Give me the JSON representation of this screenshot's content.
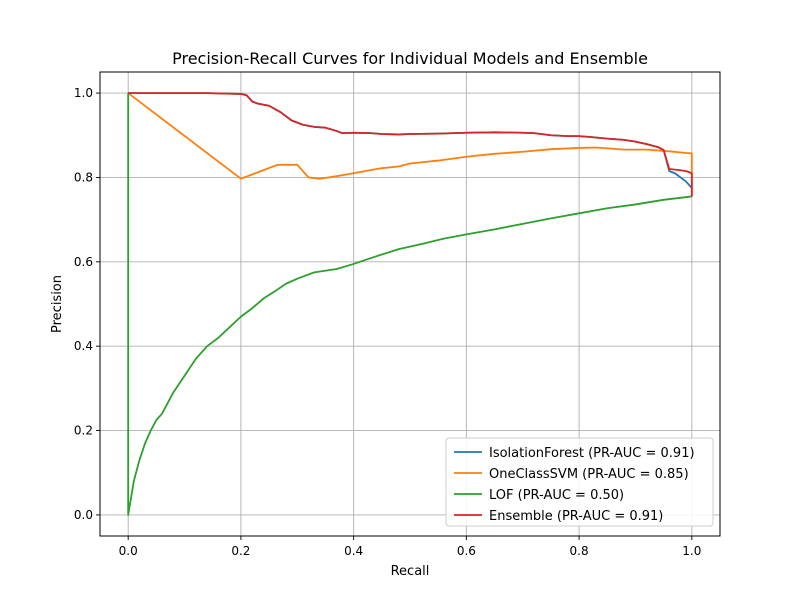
{
  "chart_data": {
    "type": "line",
    "title": "Precision-Recall Curves for Individual Models and Ensemble",
    "xlabel": "Recall",
    "ylabel": "Precision",
    "xlim": [
      -0.05,
      1.05
    ],
    "ylim": [
      -0.05,
      1.05
    ],
    "xticks": [
      0.0,
      0.2,
      0.4,
      0.6,
      0.8,
      1.0
    ],
    "xtick_labels": [
      "0.0",
      "0.2",
      "0.4",
      "0.6",
      "0.8",
      "1.0"
    ],
    "yticks": [
      0.0,
      0.2,
      0.4,
      0.6,
      0.8,
      1.0
    ],
    "ytick_labels": [
      "0.0",
      "0.2",
      "0.4",
      "0.6",
      "0.8",
      "1.0"
    ],
    "grid": true,
    "legend_position": "lower-right",
    "series": [
      {
        "name": "IsolationForest (PR-AUC = 0.91)",
        "color": "#1f77b4",
        "points": [
          [
            0,
            1.0
          ],
          [
            0.14,
            1.0
          ],
          [
            0.2,
            0.998
          ],
          [
            0.21,
            0.995
          ],
          [
            0.22,
            0.98
          ],
          [
            0.23,
            0.975
          ],
          [
            0.25,
            0.97
          ],
          [
            0.27,
            0.955
          ],
          [
            0.29,
            0.935
          ],
          [
            0.31,
            0.925
          ],
          [
            0.33,
            0.92
          ],
          [
            0.35,
            0.918
          ],
          [
            0.37,
            0.91
          ],
          [
            0.38,
            0.905
          ],
          [
            0.4,
            0.906
          ],
          [
            0.43,
            0.905
          ],
          [
            0.45,
            0.903
          ],
          [
            0.48,
            0.902
          ],
          [
            0.5,
            0.903
          ],
          [
            0.55,
            0.904
          ],
          [
            0.6,
            0.906
          ],
          [
            0.65,
            0.907
          ],
          [
            0.7,
            0.906
          ],
          [
            0.72,
            0.905
          ],
          [
            0.75,
            0.9
          ],
          [
            0.78,
            0.898
          ],
          [
            0.8,
            0.898
          ],
          [
            0.82,
            0.896
          ],
          [
            0.85,
            0.892
          ],
          [
            0.88,
            0.889
          ],
          [
            0.9,
            0.885
          ],
          [
            0.92,
            0.879
          ],
          [
            0.94,
            0.872
          ],
          [
            0.95,
            0.865
          ],
          [
            0.96,
            0.815
          ],
          [
            0.97,
            0.81
          ],
          [
            0.98,
            0.8
          ],
          [
            0.99,
            0.79
          ],
          [
            1.0,
            0.775
          ]
        ]
      },
      {
        "name": "OneClassSVM (PR-AUC = 0.85)",
        "color": "#ff7f0e",
        "points": [
          [
            0,
            1.0
          ],
          [
            0.2,
            0.797
          ],
          [
            0.265,
            0.83
          ],
          [
            0.3,
            0.83
          ],
          [
            0.32,
            0.8
          ],
          [
            0.34,
            0.797
          ],
          [
            0.37,
            0.803
          ],
          [
            0.4,
            0.81
          ],
          [
            0.42,
            0.815
          ],
          [
            0.45,
            0.822
          ],
          [
            0.48,
            0.826
          ],
          [
            0.5,
            0.833
          ],
          [
            0.55,
            0.84
          ],
          [
            0.6,
            0.849
          ],
          [
            0.65,
            0.856
          ],
          [
            0.7,
            0.861
          ],
          [
            0.75,
            0.867
          ],
          [
            0.8,
            0.87
          ],
          [
            0.83,
            0.871
          ],
          [
            0.86,
            0.868
          ],
          [
            0.88,
            0.866
          ],
          [
            0.92,
            0.866
          ],
          [
            0.96,
            0.862
          ],
          [
            0.99,
            0.858
          ],
          [
            1.0,
            0.857
          ],
          [
            1.0,
            0.755
          ]
        ]
      },
      {
        "name": "LOF (PR-AUC = 0.50)",
        "color": "#2ca02c",
        "points": [
          [
            0,
            1.0
          ],
          [
            0,
            0.0
          ],
          [
            0.005,
            0.04
          ],
          [
            0.01,
            0.08
          ],
          [
            0.02,
            0.13
          ],
          [
            0.03,
            0.17
          ],
          [
            0.04,
            0.2
          ],
          [
            0.05,
            0.225
          ],
          [
            0.06,
            0.24
          ],
          [
            0.08,
            0.29
          ],
          [
            0.1,
            0.33
          ],
          [
            0.12,
            0.37
          ],
          [
            0.14,
            0.4
          ],
          [
            0.16,
            0.42
          ],
          [
            0.18,
            0.445
          ],
          [
            0.2,
            0.47
          ],
          [
            0.22,
            0.49
          ],
          [
            0.24,
            0.513
          ],
          [
            0.26,
            0.53
          ],
          [
            0.28,
            0.548
          ],
          [
            0.3,
            0.56
          ],
          [
            0.33,
            0.575
          ],
          [
            0.37,
            0.583
          ],
          [
            0.4,
            0.595
          ],
          [
            0.44,
            0.613
          ],
          [
            0.48,
            0.63
          ],
          [
            0.52,
            0.642
          ],
          [
            0.56,
            0.655
          ],
          [
            0.6,
            0.665
          ],
          [
            0.65,
            0.677
          ],
          [
            0.7,
            0.69
          ],
          [
            0.75,
            0.703
          ],
          [
            0.8,
            0.715
          ],
          [
            0.85,
            0.727
          ],
          [
            0.9,
            0.736
          ],
          [
            0.95,
            0.747
          ],
          [
            1.0,
            0.755
          ]
        ]
      },
      {
        "name": "Ensemble (PR-AUC = 0.91)",
        "color": "#d62728",
        "points": [
          [
            0,
            1.0
          ],
          [
            0.14,
            1.0
          ],
          [
            0.2,
            0.998
          ],
          [
            0.21,
            0.995
          ],
          [
            0.22,
            0.98
          ],
          [
            0.23,
            0.975
          ],
          [
            0.25,
            0.97
          ],
          [
            0.27,
            0.955
          ],
          [
            0.29,
            0.935
          ],
          [
            0.31,
            0.925
          ],
          [
            0.33,
            0.92
          ],
          [
            0.35,
            0.918
          ],
          [
            0.37,
            0.91
          ],
          [
            0.38,
            0.905
          ],
          [
            0.4,
            0.906
          ],
          [
            0.43,
            0.905
          ],
          [
            0.45,
            0.903
          ],
          [
            0.48,
            0.902
          ],
          [
            0.5,
            0.903
          ],
          [
            0.55,
            0.904
          ],
          [
            0.6,
            0.906
          ],
          [
            0.65,
            0.907
          ],
          [
            0.7,
            0.906
          ],
          [
            0.72,
            0.905
          ],
          [
            0.75,
            0.9
          ],
          [
            0.78,
            0.898
          ],
          [
            0.8,
            0.898
          ],
          [
            0.82,
            0.896
          ],
          [
            0.85,
            0.892
          ],
          [
            0.88,
            0.889
          ],
          [
            0.9,
            0.885
          ],
          [
            0.92,
            0.879
          ],
          [
            0.94,
            0.872
          ],
          [
            0.95,
            0.865
          ],
          [
            0.96,
            0.82
          ],
          [
            0.98,
            0.817
          ],
          [
            0.99,
            0.815
          ],
          [
            1.0,
            0.81
          ],
          [
            1.0,
            0.755
          ]
        ]
      }
    ]
  }
}
